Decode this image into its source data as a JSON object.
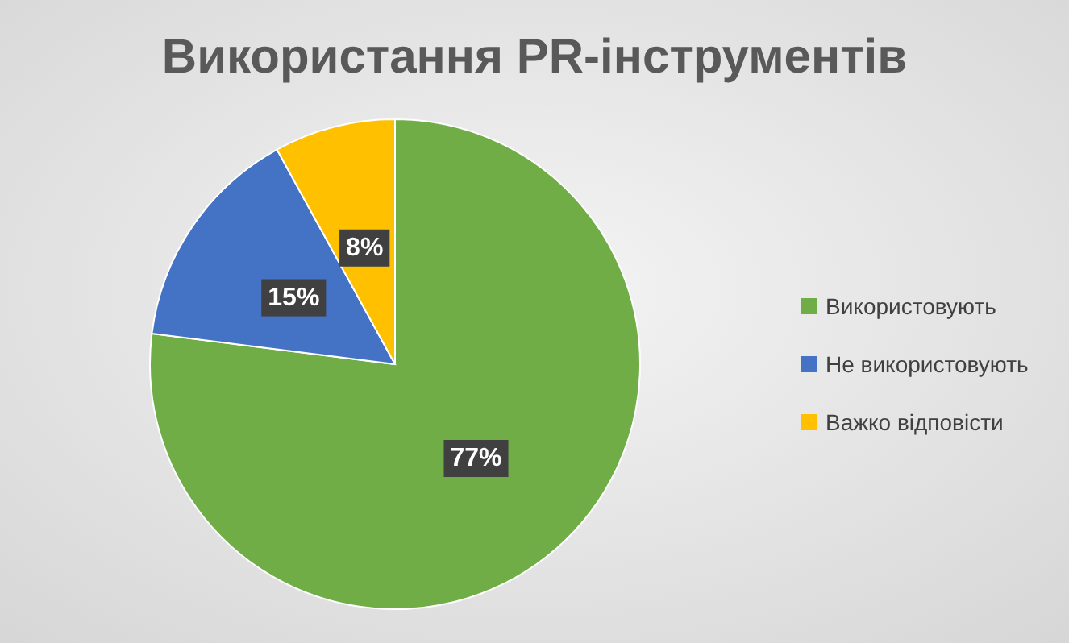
{
  "chart_data": {
    "type": "pie",
    "title": "Використання PR-інструментів",
    "categories": [
      "Використовують",
      "Не використовують",
      "Важко відповісти"
    ],
    "values": [
      77,
      15,
      8
    ],
    "colors": [
      "#70ad47",
      "#4472c4",
      "#ffc000"
    ],
    "value_labels": [
      "77%",
      "15%",
      "8%"
    ],
    "legend": "right"
  }
}
